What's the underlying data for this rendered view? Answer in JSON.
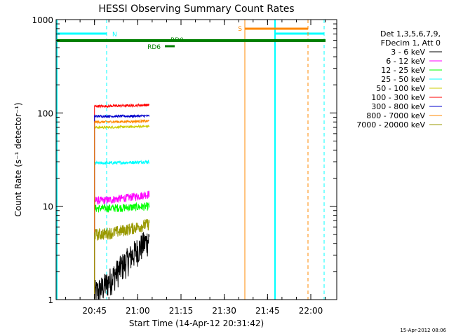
{
  "chart_data": {
    "type": "line",
    "title": "HESSI Observing Summary Count Rates",
    "xlabel": "Start Time (14-Apr-12 20:31:42)",
    "ylabel": "Count Rate (s⁻¹ detector⁻¹)",
    "yscale": "log",
    "ylim": [
      1,
      1000
    ],
    "xlim": [
      "20:31:42",
      "22:09:00"
    ],
    "x_ticks": [
      "20:45",
      "21:00",
      "21:15",
      "21:30",
      "21:45",
      "22:00"
    ],
    "y_ticks": [
      "1",
      "10",
      "100",
      "1000"
    ],
    "grid": false,
    "legend_position": "right",
    "legend_header": [
      "Det 1,3,5,6,7,9,",
      "FDecim 1, Att 0"
    ],
    "data_window": [
      "20:45:00",
      "21:04:00"
    ],
    "series": [
      {
        "name": "3 - 6 keV",
        "color": "#000000",
        "level_start": 1.2,
        "level_end": 4.5,
        "noise": 0.35
      },
      {
        "name": "6 - 12 keV",
        "color": "#ff00ff",
        "level_start": 11.5,
        "level_end": 13.5,
        "noise": 0.1
      },
      {
        "name": "12 - 25 keV",
        "color": "#00ff00",
        "level_start": 9.5,
        "level_end": 10.0,
        "noise": 0.1
      },
      {
        "name": "25 - 50 keV",
        "color": "#00ffff",
        "level_start": 29,
        "level_end": 30,
        "noise": 0.04
      },
      {
        "name": "50 - 100 keV",
        "color": "#cccc00",
        "level_start": 70,
        "level_end": 72,
        "noise": 0.03
      },
      {
        "name": "100 - 300 keV",
        "color": "#ff0000",
        "level_start": 118,
        "level_end": 122,
        "noise": 0.03
      },
      {
        "name": "300 - 800 keV",
        "color": "#0000cc",
        "level_start": 92,
        "level_end": 93,
        "noise": 0.03
      },
      {
        "name": "800 - 7000 keV",
        "color": "#ff8800",
        "level_start": 80,
        "level_end": 82,
        "noise": 0.03
      },
      {
        "name": "7000 - 20000 keV",
        "color": "#999900",
        "level_start": 5.0,
        "level_end": 6.5,
        "noise": 0.15
      }
    ],
    "flag_labels": [
      {
        "label": "N",
        "color": "#00ffff"
      },
      {
        "label": "RD0",
        "color": "#008000"
      },
      {
        "label": "RD6",
        "color": "#008000"
      },
      {
        "label": "S",
        "color": "#ff8800"
      }
    ],
    "timestamp": "15-Apr-2012 08:06"
  }
}
